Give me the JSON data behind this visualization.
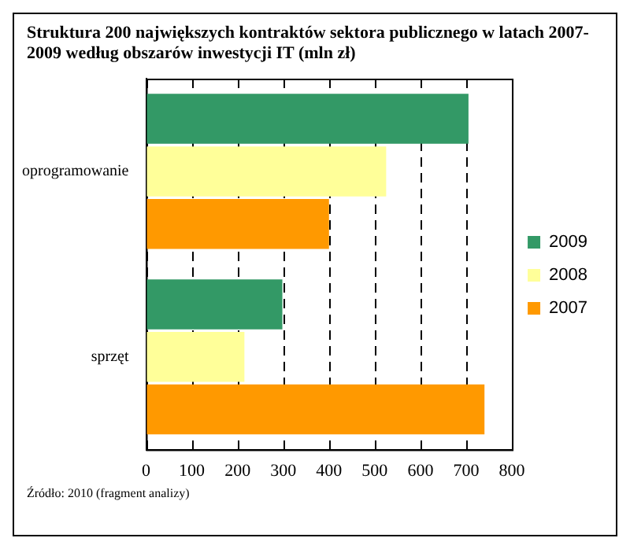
{
  "chart_data": {
    "type": "bar",
    "orientation": "horizontal",
    "title": "Struktura 200 największych kontraktów sektora publicznego w latach 2007-2009 według obszarów inwestycji IT (mln zł)",
    "annotations": [
      "Źródło: 2010 (fragment analizy)"
    ],
    "categories": [
      "oprogramowanie",
      "sprzęt"
    ],
    "series": [
      {
        "name": "2009",
        "color": "#339966",
        "values": [
          705,
          298
        ]
      },
      {
        "name": "2008",
        "color": "#ffff99",
        "values": [
          525,
          215
        ]
      },
      {
        "name": "2007",
        "color": "#ff9900",
        "values": [
          400,
          740
        ]
      }
    ],
    "xlim": [
      0,
      800
    ],
    "xticks": [
      0,
      100,
      200,
      300,
      400,
      500,
      600,
      700,
      800
    ],
    "grid": "x",
    "legend": "right"
  }
}
